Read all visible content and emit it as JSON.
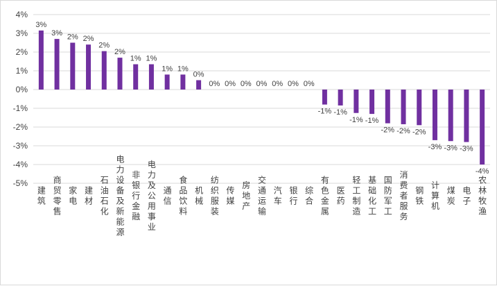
{
  "chart_data": {
    "type": "bar",
    "title": "",
    "xlabel": "",
    "ylabel": "",
    "ylim": [
      -5,
      4
    ],
    "yticks": [
      4,
      3,
      2,
      1,
      0,
      -1,
      -2,
      -3,
      -4,
      -5
    ],
    "ytick_labels": [
      "4%",
      "3%",
      "2%",
      "1%",
      "0%",
      "-1%",
      "-2%",
      "-3%",
      "-4%",
      "-5%"
    ],
    "grid": true,
    "bar_color": "#7030a0",
    "categories": [
      "建筑",
      "商贸零售",
      "家电",
      "建材",
      "石油石化",
      "电力设备及新能源",
      "非银行金融",
      "电力及公用事业",
      "通信",
      "食品饮料",
      "机械",
      "纺织服装",
      "传媒",
      "房地产",
      "交通运输",
      "汽车",
      "银行",
      "综合",
      "有色金属",
      "医药",
      "轻工制造",
      "基础化工",
      "国防军工",
      "消费者服务",
      "钢铁",
      "计算机",
      "煤炭",
      "电子",
      "农林牧渔"
    ],
    "values": [
      3.15,
      2.7,
      2.5,
      2.4,
      2.05,
      1.7,
      1.35,
      1.35,
      0.8,
      0.8,
      0.5,
      0.0,
      0.0,
      0.0,
      0.0,
      0.0,
      0.0,
      0.0,
      -0.8,
      -0.85,
      -1.25,
      -1.3,
      -1.8,
      -1.85,
      -1.9,
      -2.7,
      -2.75,
      -2.8,
      -4.0
    ],
    "data_labels": [
      "3%",
      "3%",
      "2%",
      "2%",
      "2%",
      "2%",
      "1%",
      "1%",
      "1%",
      "1%",
      "0%",
      "0%",
      "0%",
      "0%",
      "0%",
      "0%",
      "0%",
      "0%",
      "-1%",
      "-1%",
      "-1%",
      "-1%",
      "-2%",
      "-2%",
      "-2%",
      "-3%",
      "-3%",
      "-3%",
      "-4%"
    ]
  }
}
